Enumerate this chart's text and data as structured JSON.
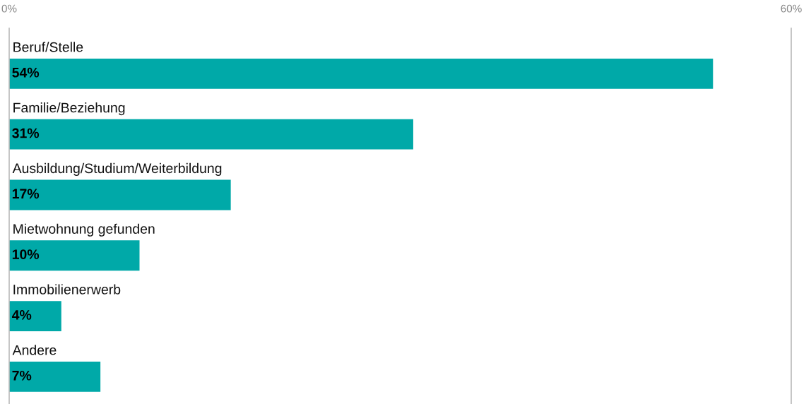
{
  "chart_data": {
    "type": "bar",
    "orientation": "horizontal",
    "categories": [
      "Beruf/Stelle",
      "Familie/Beziehung",
      "Ausbildung/Studium/Weiterbildung",
      "Mietwohnung gefunden",
      "Immobilienerwerb",
      "Andere"
    ],
    "values": [
      54,
      31,
      17,
      10,
      4,
      7
    ],
    "value_labels": [
      "54%",
      "31%",
      "17%",
      "10%",
      "4%",
      "7%"
    ],
    "color": "#00a9a8",
    "xlim": [
      0,
      60
    ],
    "xticks": [
      {
        "value": 0,
        "label": "0%"
      },
      {
        "value": 60,
        "label": "60%"
      }
    ]
  }
}
